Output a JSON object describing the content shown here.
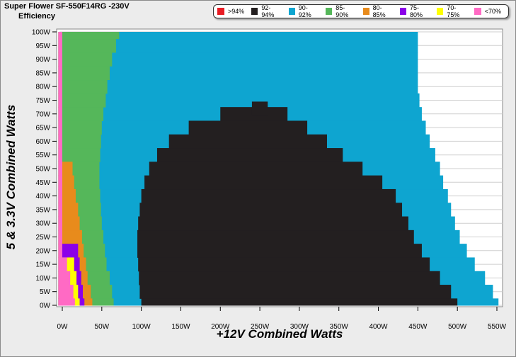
{
  "chart_data": {
    "type": "heatmap",
    "title": "Super Flower SF-550F14RG -230V",
    "subtitle": "Efficiency",
    "xlabel": "+12V Combined Watts",
    "ylabel": "5 & 3.3V Combined Watts",
    "x_ticks": [
      "0W",
      "50W",
      "100W",
      "150W",
      "200W",
      "250W",
      "300W",
      "350W",
      "400W",
      "450W",
      "500W",
      "550W"
    ],
    "y_ticks": [
      "100W",
      "95W",
      "90W",
      "85W",
      "80W",
      "75W",
      "70W",
      "65W",
      "60W",
      "55W",
      "50W",
      "45W",
      "40W",
      "35W",
      "30W",
      "25W",
      "20W",
      "15W",
      "10W",
      "5W",
      "0W"
    ],
    "xlim": [
      0,
      550
    ],
    "ylim": [
      0,
      100
    ],
    "grid": true,
    "legend_position": "top-right",
    "legend": [
      {
        "label": ">94%",
        "color": "#e81c24"
      },
      {
        "label": "92-94%",
        "color": "#231f20"
      },
      {
        "label": "90-92%",
        "color": "#0ea5d0"
      },
      {
        "label": "85-90%",
        "color": "#55b75a"
      },
      {
        "label": "80-85%",
        "color": "#e88b1c"
      },
      {
        "label": "75-80%",
        "color": "#8b00e8"
      },
      {
        "label": "70-75%",
        "color": "#ffff00"
      },
      {
        "label": "<70%",
        "color": "#ff6ac4"
      }
    ],
    "region_boundaries": {
      "y": [
        0,
        5,
        10,
        15,
        20,
        25,
        30,
        35,
        40,
        45,
        50,
        55,
        60,
        65,
        70,
        75,
        80,
        85,
        90,
        95,
        100
      ],
      "max_load_x": [
        552,
        545,
        535,
        522,
        512,
        503,
        497,
        492,
        488,
        482,
        478,
        472,
        465,
        460,
        455,
        452,
        450,
        450,
        450,
        450,
        450
      ],
      "black_region": {
        "y": [
          0,
          5,
          10,
          15,
          20,
          25,
          30,
          35,
          40,
          45,
          50,
          55,
          60,
          65,
          70,
          72
        ],
        "x_start": [
          100,
          98,
          97,
          96,
          95,
          95,
          96,
          98,
          100,
          104,
          110,
          120,
          135,
          160,
          200,
          240
        ],
        "x_end": [
          500,
          492,
          478,
          465,
          455,
          445,
          438,
          430,
          422,
          405,
          380,
          355,
          335,
          310,
          285,
          260
        ]
      },
      "green_right_x": [
        65,
        63,
        60,
        56,
        54,
        52,
        50,
        49,
        48,
        47,
        47,
        48,
        49,
        50,
        52,
        55,
        57,
        60,
        63,
        68,
        72
      ],
      "orange_right_x": [
        38,
        36,
        32,
        30,
        27,
        25,
        22,
        20,
        17,
        15,
        13,
        0,
        0,
        0,
        0,
        0,
        0,
        0,
        0,
        0,
        0
      ],
      "purple_right_x": [
        28,
        26,
        24,
        22,
        20,
        0,
        0,
        0,
        0,
        0,
        0,
        0,
        0,
        0,
        0,
        0,
        0,
        0,
        0,
        0,
        0
      ],
      "yellow_right_x": [
        22,
        20,
        18,
        15,
        0,
        0,
        0,
        0,
        0,
        0,
        0,
        0,
        0,
        0,
        0,
        0,
        0,
        0,
        0,
        0,
        0
      ],
      "pink_right_x": [
        16,
        14,
        10,
        6,
        0,
        0,
        0,
        0,
        0,
        0,
        0,
        0,
        0,
        0,
        0,
        0,
        0,
        0,
        0,
        0,
        0
      ]
    }
  }
}
